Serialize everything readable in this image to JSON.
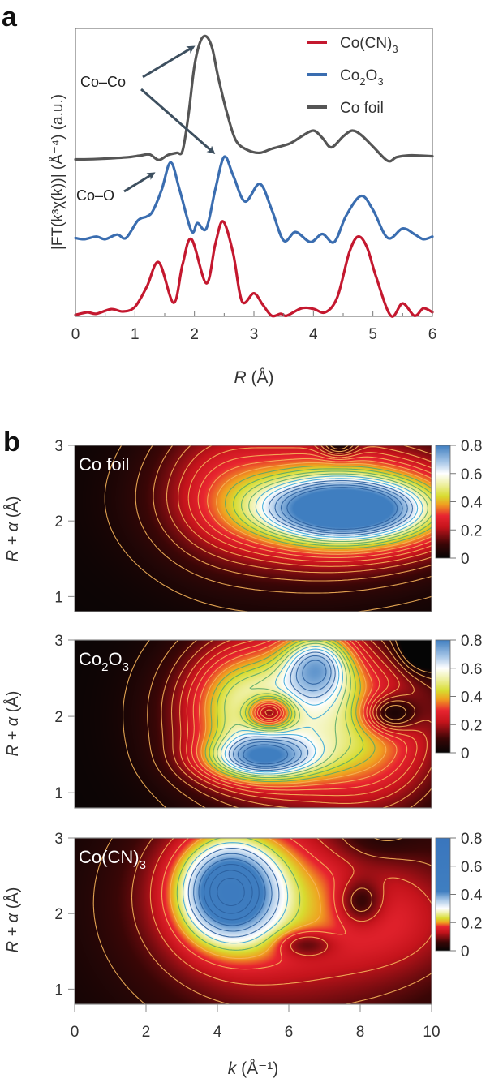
{
  "panel_labels": {
    "a": "a",
    "b": "b"
  },
  "chart_data": [
    {
      "id": "a",
      "type": "line",
      "title": "",
      "xlabel_italic": "R",
      "xlabel_rest": " (Å)",
      "ylabel": "|FT(k³χ(k))| (Å⁻⁴) (a.u.)",
      "xlim": [
        0,
        6
      ],
      "ylim": [
        0,
        100
      ],
      "xticks": [
        0,
        1,
        2,
        3,
        4,
        5,
        6
      ],
      "xtick_labels": [
        "0",
        "1",
        "2",
        "3",
        "4",
        "5",
        "6"
      ],
      "xminor_step": 0.5,
      "yticks_shown": false,
      "legend": {
        "placement": "top-right",
        "entries": [
          {
            "label": "Co(CN)",
            "sub": "3",
            "series": "Co(CN)3"
          },
          {
            "label": "Co",
            "sub": "2",
            "label2": "O",
            "sub2": "3",
            "series": "Co2O3"
          },
          {
            "label": "Co foil",
            "series": "Co foil"
          }
        ]
      },
      "annotations": [
        {
          "text": "Co–Co",
          "arrows_to": [
            {
              "series": "Co foil",
              "R": 2.2
            },
            {
              "series": "Co2O3",
              "R": 2.5
            }
          ]
        },
        {
          "text": "Co–O",
          "arrows_to": [
            {
              "series": "Co2O3",
              "R": 1.6
            }
          ]
        }
      ],
      "series": [
        {
          "name": "Co foil",
          "color": "#555555",
          "x": [
            0,
            0.3,
            0.6,
            0.9,
            1.1,
            1.25,
            1.4,
            1.55,
            1.7,
            1.8,
            1.9,
            2.0,
            2.1,
            2.2,
            2.3,
            2.4,
            2.55,
            2.7,
            2.9,
            3.1,
            3.3,
            3.6,
            3.8,
            4.0,
            4.15,
            4.3,
            4.5,
            4.65,
            4.8,
            5.0,
            5.25,
            5.4,
            5.6,
            5.8,
            6.0
          ],
          "y": [
            54.5,
            54.6,
            54.9,
            55.3,
            55.9,
            56.2,
            54.3,
            56.0,
            56.8,
            57.5,
            70,
            87,
            95.5,
            97.2,
            93,
            83,
            70.4,
            61,
            57.7,
            56.8,
            58.2,
            60,
            62.5,
            64.5,
            62,
            58.7,
            62.5,
            64.5,
            63,
            59,
            54,
            55.3,
            55.9,
            55.8,
            55.6
          ]
        },
        {
          "name": "Co2O3",
          "color": "#3a6db0",
          "x": [
            0,
            0.15,
            0.35,
            0.5,
            0.7,
            0.85,
            1.05,
            1.2,
            1.3,
            1.45,
            1.6,
            1.75,
            1.95,
            2.05,
            2.2,
            2.35,
            2.5,
            2.65,
            2.85,
            3.1,
            3.3,
            3.5,
            3.7,
            3.95,
            4.15,
            4.35,
            4.55,
            4.8,
            5.0,
            5.25,
            5.5,
            5.7,
            5.85,
            6.0
          ],
          "y": [
            27.2,
            26.8,
            27.7,
            26.8,
            28.4,
            27.2,
            33.3,
            34.7,
            36.6,
            44,
            53.5,
            44,
            29.6,
            32.4,
            30.5,
            44,
            55.4,
            49,
            39.9,
            46,
            37,
            26.3,
            29.3,
            25.8,
            28.6,
            25.8,
            35,
            41.8,
            37,
            27.2,
            30.5,
            28.5,
            26.8,
            27.7
          ]
        },
        {
          "name": "Co(CN)3",
          "color": "#c4182f",
          "x": [
            0,
            0.2,
            0.35,
            0.6,
            0.8,
            1.0,
            1.2,
            1.4,
            1.65,
            1.8,
            1.95,
            2.2,
            2.35,
            2.48,
            2.65,
            2.8,
            3.0,
            3.15,
            3.3,
            3.45,
            3.55,
            3.8,
            4.0,
            4.2,
            4.4,
            4.6,
            4.75,
            4.9,
            5.05,
            5.3,
            5.5,
            5.7,
            5.85,
            6.0
          ],
          "y": [
            0.5,
            1.4,
            0.9,
            2.5,
            1.7,
            3.3,
            10.3,
            18.8,
            4.7,
            18,
            26.8,
            11.5,
            25,
            33,
            22,
            5.2,
            8,
            4,
            0.2,
            0.9,
            0.2,
            2.8,
            2.6,
            1.4,
            6.6,
            22,
            27.7,
            24,
            14,
            0.2,
            4.5,
            0.2,
            2.8,
            1.4
          ]
        }
      ]
    },
    {
      "id": "b",
      "type": "heatmap",
      "xlabel_italic": "k",
      "xlabel_rest": " (Å⁻¹)",
      "ylabel_italic": "R + α",
      "ylabel_rest": " (Å)",
      "xlim": [
        0,
        10
      ],
      "xticks": [
        0,
        2,
        4,
        6,
        8,
        10
      ],
      "xtick_labels": [
        "0",
        "2",
        "4",
        "6",
        "8",
        "10"
      ],
      "ylim": [
        0.8,
        3.0
      ],
      "yticks": [
        1,
        2,
        3
      ],
      "ytick_labels": [
        "1",
        "2",
        "3"
      ],
      "colorbar_ticks": [
        0,
        0.2,
        0.4,
        0.6,
        0.8
      ],
      "colorbar_tick_labels": [
        "0",
        "0.2",
        "0.4",
        "0.6",
        "0.8"
      ],
      "contour_step": 0.04,
      "maps": [
        {
          "name": "Co foil",
          "label": "Co foil",
          "colormap": [
            [
              0,
              "#050505"
            ],
            [
              0.1,
              "#3a0606"
            ],
            [
              0.22,
              "#c5141c"
            ],
            [
              0.3,
              "#e82530"
            ],
            [
              0.38,
              "#f0a020"
            ],
            [
              0.44,
              "#d8dc30"
            ],
            [
              0.52,
              "#eef0a0"
            ],
            [
              0.6,
              "#ffffff"
            ],
            [
              0.68,
              "#a9c8e8"
            ],
            [
              0.8,
              "#3f7ec0"
            ]
          ],
          "components": [
            {
              "k": 7.6,
              "R": 2.15,
              "amp": 0.55,
              "sk": 1.7,
              "sR": 0.3
            },
            {
              "k": 8.2,
              "R": 2.2,
              "amp": 0.25,
              "sk": 2.6,
              "sR": 0.5
            },
            {
              "k": 6.4,
              "R": 2.3,
              "amp": 0.22,
              "sk": 2.6,
              "sR": 0.75
            },
            {
              "k": 4.0,
              "R": 2.6,
              "amp": 0.1,
              "sk": 1.2,
              "sR": 0.7
            },
            {
              "k": 7.4,
              "R": 3.0,
              "amp": -0.18,
              "sk": 0.35,
              "sR": 0.12
            }
          ]
        },
        {
          "name": "Co2O3",
          "label": "Co",
          "label_sub": "2",
          "label2": "O",
          "label_sub2": "3",
          "colormap": [
            [
              0,
              "#050505"
            ],
            [
              0.1,
              "#3a0606"
            ],
            [
              0.22,
              "#c5141c"
            ],
            [
              0.3,
              "#e82530"
            ],
            [
              0.38,
              "#f0a020"
            ],
            [
              0.44,
              "#d8dc30"
            ],
            [
              0.52,
              "#eef0a0"
            ],
            [
              0.6,
              "#ffffff"
            ],
            [
              0.68,
              "#a9c8e8"
            ],
            [
              0.8,
              "#3f7ec0"
            ]
          ],
          "components": [
            {
              "k": 6.8,
              "R": 2.7,
              "amp": 0.42,
              "sk": 0.7,
              "sR": 0.32
            },
            {
              "k": 5.2,
              "R": 1.45,
              "amp": 0.42,
              "sk": 1.1,
              "sR": 0.2
            },
            {
              "k": 5.8,
              "R": 2.0,
              "amp": 0.45,
              "sk": 1.9,
              "sR": 0.75
            },
            {
              "k": 4.6,
              "R": 2.2,
              "amp": 0.18,
              "sk": 1.0,
              "sR": 0.5
            },
            {
              "k": 8.5,
              "R": 1.7,
              "amp": 0.25,
              "sk": 1.4,
              "sR": 0.7
            },
            {
              "k": 5.45,
              "R": 2.05,
              "amp": -0.42,
              "sk": 0.45,
              "sR": 0.15
            },
            {
              "k": 8.8,
              "R": 2.03,
              "amp": -0.3,
              "sk": 0.55,
              "sR": 0.18
            },
            {
              "k": 9.8,
              "R": 3.0,
              "amp": -0.3,
              "sk": 0.45,
              "sR": 0.25
            }
          ]
        },
        {
          "name": "Co(CN)3",
          "label": "Co(CN)",
          "label_sub": "3",
          "colormap": [
            [
              0,
              "#050505"
            ],
            [
              0.06,
              "#3a0606"
            ],
            [
              0.13,
              "#c5141c"
            ],
            [
              0.17,
              "#e82530"
            ],
            [
              0.2,
              "#f0a020"
            ],
            [
              0.23,
              "#d8dc30"
            ],
            [
              0.27,
              "#f0f2b0"
            ],
            [
              0.3,
              "#ffffff"
            ],
            [
              0.36,
              "#a9c8e8"
            ],
            [
              0.42,
              "#3f7ec0"
            ],
            [
              0.8,
              "#3a76bd"
            ]
          ],
          "components": [
            {
              "k": 4.3,
              "R": 2.3,
              "amp": 0.33,
              "sk": 0.9,
              "sR": 0.45
            },
            {
              "k": 4.6,
              "R": 2.3,
              "amp": 0.12,
              "sk": 1.8,
              "sR": 0.75
            },
            {
              "k": 6.5,
              "R": 2.0,
              "amp": 0.12,
              "sk": 3.2,
              "sR": 1.1
            },
            {
              "k": 9.0,
              "R": 1.9,
              "amp": 0.06,
              "sk": 1.5,
              "sR": 0.5
            },
            {
              "k": 6.45,
              "R": 1.6,
              "amp": -0.1,
              "sk": 0.55,
              "sR": 0.12
            },
            {
              "k": 8.0,
              "R": 2.15,
              "amp": -0.12,
              "sk": 0.45,
              "sR": 0.22
            },
            {
              "k": 8.4,
              "R": 3.0,
              "amp": -0.05,
              "sk": 0.9,
              "sR": 0.25
            }
          ]
        }
      ]
    }
  ]
}
